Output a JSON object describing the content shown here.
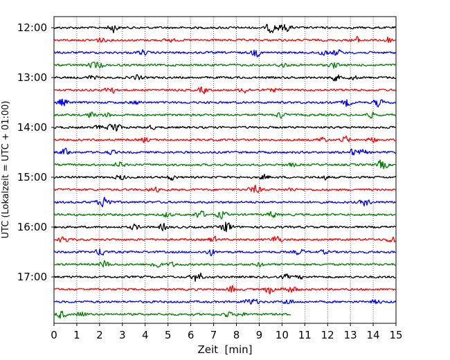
{
  "chart_data": {
    "type": "line",
    "subtype": "helicorder / seismogram drum plot",
    "title": "",
    "xlabel": "Zeit  [min]",
    "ylabel": "UTC (Lokalzeit = UTC + 01:00)",
    "xlim": [
      0,
      15
    ],
    "x_ticks": [
      "0",
      "1",
      "2",
      "3",
      "4",
      "5",
      "6",
      "7",
      "8",
      "9",
      "10",
      "11",
      "12",
      "13",
      "14",
      "15"
    ],
    "y_tick_labels": [
      "12:00",
      "13:00",
      "14:00",
      "15:00",
      "16:00",
      "17:00"
    ],
    "minutes_per_trace": 15,
    "trace_count": 24,
    "last_trace_end_min": 10.4,
    "vertical_grid": "dotted at every minute",
    "trace_colors": [
      "#000000",
      "#ff0000",
      "#0000ff",
      "#008000"
    ]
  }
}
